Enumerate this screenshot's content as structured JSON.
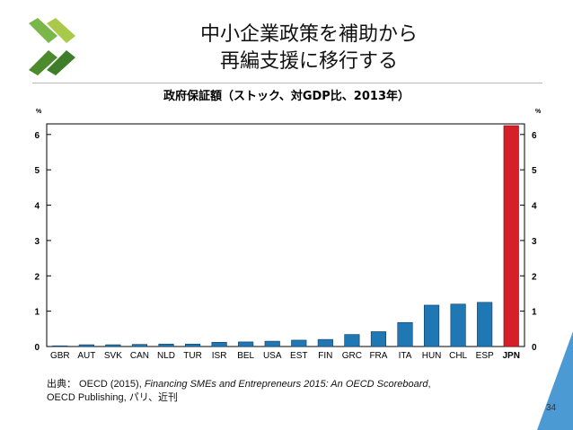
{
  "header": {
    "title_line1": "中小企業政策を補助から",
    "title_line2": "再編支援に移行する",
    "brand_color": "#7ab648",
    "accent_color": "#4c9ad3"
  },
  "chart_data": {
    "type": "bar",
    "title": "政府保証額（ストック、対GDP比、2013年）",
    "ylabel_left": "%",
    "ylabel_right": "%",
    "ylim": [
      0,
      6.3
    ],
    "yticks": [
      0,
      1,
      2,
      3,
      4,
      5,
      6
    ],
    "categories": [
      "GBR",
      "AUT",
      "SVK",
      "CAN",
      "NLD",
      "TUR",
      "ISR",
      "BEL",
      "USA",
      "EST",
      "FIN",
      "GRC",
      "FRA",
      "ITA",
      "HUN",
      "CHL",
      "ESP",
      "JPN"
    ],
    "values": [
      0.02,
      0.05,
      0.05,
      0.06,
      0.07,
      0.07,
      0.12,
      0.13,
      0.15,
      0.18,
      0.2,
      0.34,
      0.42,
      0.68,
      1.17,
      1.2,
      1.25,
      6.25
    ],
    "highlight": "JPN",
    "bar_color": "#1f77b4",
    "highlight_color": "#d62027",
    "grid": false,
    "legend": "none"
  },
  "footer": {
    "source_prefix": "出典： OECD (2015), ",
    "source_title": "Financing SMEs and Entrepreneurs 2015: An OECD Scoreboard",
    "source_suffix": ",",
    "source_line2": "OECD Publishing, パリ、近刊",
    "page_number": "34"
  }
}
